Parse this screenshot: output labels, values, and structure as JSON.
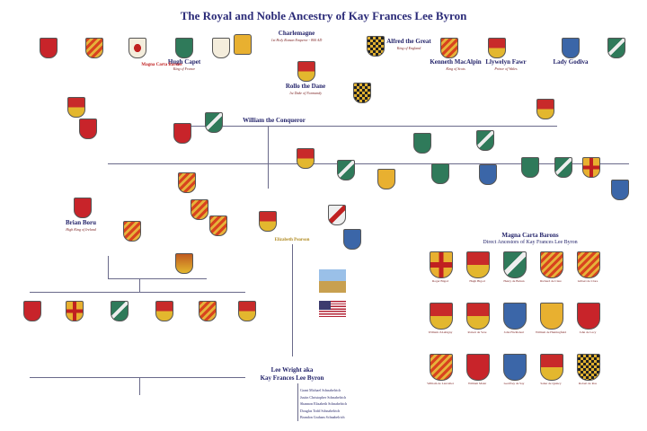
{
  "title": "The Royal and Noble Ancestry of Kay Frances Lee Byron",
  "charlemagne": {
    "name": "Charlemagne",
    "sub": "1st Holy Roman Emperor - 800 AD"
  },
  "alfred": {
    "name": "Alfred the Great",
    "sub": "King of England"
  },
  "kenneth": {
    "name": "Kenneth MacAlpin",
    "sub": "King of Scots"
  },
  "llywelyn": {
    "name": "Llywelyn Fawr",
    "sub": "Prince of Wales"
  },
  "godiva": {
    "name": "Lady Godiva"
  },
  "rollo": {
    "name": "Rollo the Dane",
    "sub": "1st Duke of Normandy"
  },
  "william": {
    "name": "William the Conqueror"
  },
  "hugh": {
    "name": "Hugh Capet",
    "sub": "King of France"
  },
  "brian": {
    "name": "Brian Boru",
    "sub": "High King of Ireland"
  },
  "elizabeth": {
    "name": "Elizabeth Pearson"
  },
  "lee": {
    "line1": "Lee Wright aka",
    "line2": "Kay Frances Lee Byron"
  },
  "children": [
    "Grant Michael Schnabelrich",
    "Justin Christopher Schnabelrich",
    "Shannon Elizabeth Schnabelrich",
    "Douglas Todd Schnabelrich",
    "Brandon Graham Schnabelrich"
  ],
  "magna_carta": {
    "line1": "Magna Carta Barons",
    "line2": "Direct Ancestors of Kay Frances Lee Byron",
    "barons": [
      "Roger Bigod",
      "Hugh Bigod",
      "Henry de Bohun",
      "Richard de Clare",
      "Gilbert de Clare",
      "William d'Aubigny",
      "Robert de Vere",
      "John FitzRobert",
      "William de Huntingfield",
      "John de Lacy",
      "William de Lanvallei",
      "William Malet",
      "Geoffrey de Say",
      "Saher de Quincy",
      "Robert de Ros"
    ]
  },
  "magna_carta_left": "Magna Carta Barons"
}
